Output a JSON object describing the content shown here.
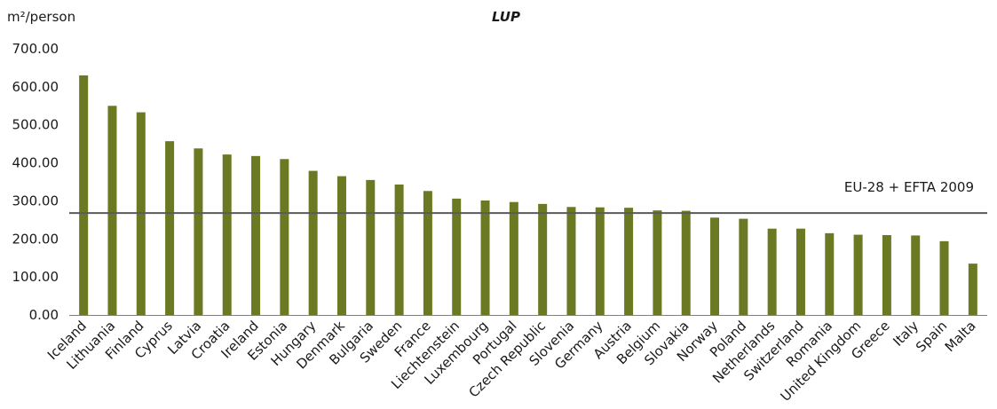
{
  "chart_data": {
    "type": "bar",
    "title": "LUP",
    "ylabel": "m²/person",
    "xlabel": "",
    "ylim": [
      0,
      700
    ],
    "yticks": [
      "0.00",
      "100.00",
      "200.00",
      "300.00",
      "400.00",
      "500.00",
      "600.00",
      "700.00"
    ],
    "categories": [
      "Iceland",
      "Lithuania",
      "Finland",
      "Cyprus",
      "Latvia",
      "Croatia",
      "Ireland",
      "Estonia",
      "Hungary",
      "Denmark",
      "Bulgaria",
      "Sweden",
      "France",
      "Liechtenstein",
      "Luxembourg",
      "Portugal",
      "Czech Republic",
      "Slovenia",
      "Germany",
      "Austria",
      "Belgium",
      "Slovakia",
      "Norway",
      "Poland",
      "Netherlands",
      "Switzerland",
      "Romania",
      "United Kingdom",
      "Greece",
      "Italy",
      "Spain",
      "Malta"
    ],
    "values": [
      630,
      550,
      533,
      457,
      438,
      422,
      418,
      410,
      379,
      365,
      355,
      343,
      326,
      306,
      301,
      297,
      292,
      284,
      283,
      282,
      275,
      274,
      256,
      253,
      227,
      227,
      215,
      211,
      210,
      209,
      194,
      135
    ],
    "bar_color": "#6b7a22",
    "grid": false,
    "reference_line": {
      "label": "EU-28 + EFTA 2009",
      "value": 268,
      "color": "#5a5a5a"
    }
  }
}
